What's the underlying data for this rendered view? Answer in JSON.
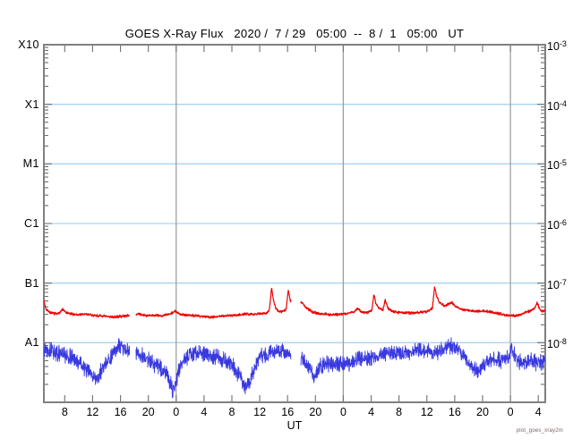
{
  "watermark": "plot_goes_xray2m",
  "colors": {
    "background": "#ffffff",
    "axis_frame": "#808080",
    "tick": "#6e6e6e",
    "horizontal_gridline": "#a9d4f2",
    "vertical_gridline": "#9a9a9a",
    "long_wavelength_trace": "#f00000",
    "short_wavelength_trace": "#3939e0"
  },
  "chart_data": {
    "type": "line",
    "title": "GOES X-Ray Flux   2020 /  7 / 29   05:00  --  8 /  1   05:00   UT",
    "xlabel": "UT",
    "time_span": {
      "start": "2020/7/29 05:00 UT",
      "end": "2020/8/1 05:00 UT",
      "hours": 72
    },
    "sample_minutes": 2,
    "x_axis": {
      "range_hours": [
        0,
        72
      ],
      "ticks": [
        {
          "hour": 3,
          "label": "8"
        },
        {
          "hour": 7,
          "label": "12"
        },
        {
          "hour": 11,
          "label": "16"
        },
        {
          "hour": 15,
          "label": "20"
        },
        {
          "hour": 19,
          "label": "0"
        },
        {
          "hour": 23,
          "label": "4"
        },
        {
          "hour": 27,
          "label": "8"
        },
        {
          "hour": 31,
          "label": "12"
        },
        {
          "hour": 35,
          "label": "16"
        },
        {
          "hour": 39,
          "label": "20"
        },
        {
          "hour": 43,
          "label": "0"
        },
        {
          "hour": 47,
          "label": "4"
        },
        {
          "hour": 51,
          "label": "8"
        },
        {
          "hour": 55,
          "label": "12"
        },
        {
          "hour": 59,
          "label": "16"
        },
        {
          "hour": 63,
          "label": "20"
        },
        {
          "hour": 67,
          "label": "0"
        },
        {
          "hour": 71,
          "label": "4"
        }
      ],
      "day_boundary_hours": [
        19,
        43,
        67
      ]
    },
    "y_axis": {
      "scale": "log10",
      "units": "W/m^2",
      "ylim": [
        1e-09,
        0.001
      ],
      "log10_range": [
        -9,
        -3
      ],
      "left_labels": [
        {
          "label": "X10",
          "log10": -3
        },
        {
          "label": "X1",
          "log10": -4
        },
        {
          "label": "M1",
          "log10": -5
        },
        {
          "label": "C1",
          "log10": -6
        },
        {
          "label": "B1",
          "log10": -7
        },
        {
          "label": "A1",
          "log10": -8
        }
      ],
      "right_exponents": [
        "-3",
        "-4",
        "-5",
        "-6",
        "-7",
        "-8"
      ],
      "gridline_log10": [
        -4,
        -5,
        -6,
        -7,
        -8
      ]
    },
    "gaps_hours": [
      [
        12.3,
        13.2
      ],
      [
        35.5,
        36.9
      ]
    ],
    "series": [
      {
        "name": "xray-long-1-8A",
        "color": "#f00000",
        "stroke_width": 1.2,
        "noise_log10": 0.025,
        "seed": 7,
        "points": [
          [
            0,
            -7.3
          ],
          [
            0.3,
            -7.44
          ],
          [
            1,
            -7.5
          ],
          [
            2,
            -7.52
          ],
          [
            2.7,
            -7.44
          ],
          [
            3.2,
            -7.5
          ],
          [
            4,
            -7.52
          ],
          [
            5,
            -7.53
          ],
          [
            6,
            -7.52
          ],
          [
            7,
            -7.54
          ],
          [
            8,
            -7.55
          ],
          [
            9,
            -7.56
          ],
          [
            10,
            -7.57
          ],
          [
            11,
            -7.56
          ],
          [
            12.2,
            -7.54
          ],
          [
            13.3,
            -7.52
          ],
          [
            14,
            -7.53
          ],
          [
            15,
            -7.55
          ],
          [
            16,
            -7.54
          ],
          [
            17,
            -7.55
          ],
          [
            18,
            -7.52
          ],
          [
            18.9,
            -7.47
          ],
          [
            19.3,
            -7.51
          ],
          [
            20,
            -7.53
          ],
          [
            21,
            -7.54
          ],
          [
            22,
            -7.55
          ],
          [
            23,
            -7.56
          ],
          [
            24,
            -7.57
          ],
          [
            25,
            -7.56
          ],
          [
            26,
            -7.55
          ],
          [
            27,
            -7.54
          ],
          [
            28,
            -7.53
          ],
          [
            29,
            -7.52
          ],
          [
            30,
            -7.52
          ],
          [
            31,
            -7.51
          ],
          [
            32,
            -7.5
          ],
          [
            32.4,
            -7.44
          ],
          [
            32.7,
            -7.08
          ],
          [
            33.0,
            -7.3
          ],
          [
            33.3,
            -7.42
          ],
          [
            33.6,
            -7.47
          ],
          [
            34.3,
            -7.48
          ],
          [
            34.8,
            -7.44
          ],
          [
            35.1,
            -7.11
          ],
          [
            35.4,
            -7.3
          ],
          [
            37,
            -7.32
          ],
          [
            37.7,
            -7.42
          ],
          [
            38.5,
            -7.48
          ],
          [
            39.5,
            -7.51
          ],
          [
            40.5,
            -7.52
          ],
          [
            41.5,
            -7.53
          ],
          [
            42.5,
            -7.52
          ],
          [
            43.5,
            -7.51
          ],
          [
            44.5,
            -7.48
          ],
          [
            45.1,
            -7.43
          ],
          [
            45.6,
            -7.48
          ],
          [
            46.3,
            -7.5
          ],
          [
            47.1,
            -7.46
          ],
          [
            47.4,
            -7.19
          ],
          [
            47.7,
            -7.35
          ],
          [
            48.2,
            -7.43
          ],
          [
            48.7,
            -7.45
          ],
          [
            49.0,
            -7.28
          ],
          [
            49.4,
            -7.42
          ],
          [
            50,
            -7.47
          ],
          [
            51,
            -7.49
          ],
          [
            52,
            -7.5
          ],
          [
            53,
            -7.5
          ],
          [
            54,
            -7.49
          ],
          [
            55,
            -7.48
          ],
          [
            55.8,
            -7.42
          ],
          [
            56.1,
            -7.06
          ],
          [
            56.4,
            -7.22
          ],
          [
            56.8,
            -7.32
          ],
          [
            57.5,
            -7.38
          ],
          [
            58.0,
            -7.36
          ],
          [
            58.6,
            -7.33
          ],
          [
            59.2,
            -7.4
          ],
          [
            60,
            -7.44
          ],
          [
            61,
            -7.46
          ],
          [
            62,
            -7.47
          ],
          [
            63,
            -7.47
          ],
          [
            64,
            -7.48
          ],
          [
            65,
            -7.5
          ],
          [
            66,
            -7.53
          ],
          [
            67,
            -7.55
          ],
          [
            68,
            -7.54
          ],
          [
            69,
            -7.5
          ],
          [
            70,
            -7.46
          ],
          [
            70.5,
            -7.42
          ],
          [
            70.8,
            -7.32
          ],
          [
            71.2,
            -7.44
          ],
          [
            71.6,
            -7.47
          ],
          [
            72,
            -7.46
          ]
        ]
      },
      {
        "name": "xray-short-0.5-4A",
        "color": "#3939e0",
        "stroke_width": 0.9,
        "noise_log10": 0.16,
        "seed": 13,
        "points": [
          [
            0,
            -8.07
          ],
          [
            1,
            -8.13
          ],
          [
            2,
            -8.18
          ],
          [
            3,
            -8.21
          ],
          [
            4,
            -8.25
          ],
          [
            5,
            -8.33
          ],
          [
            6,
            -8.43
          ],
          [
            7,
            -8.55
          ],
          [
            7.5,
            -8.63
          ],
          [
            8,
            -8.52
          ],
          [
            9,
            -8.33
          ],
          [
            10,
            -8.18
          ],
          [
            10.8,
            -8.07
          ],
          [
            11.5,
            -8.1
          ],
          [
            12.2,
            -8.13
          ],
          [
            13.3,
            -8.18
          ],
          [
            14,
            -8.22
          ],
          [
            15,
            -8.28
          ],
          [
            16,
            -8.37
          ],
          [
            17,
            -8.43
          ],
          [
            17.8,
            -8.55
          ],
          [
            18.3,
            -8.73
          ],
          [
            18.6,
            -8.85
          ],
          [
            18.8,
            -8.73
          ],
          [
            19.2,
            -8.55
          ],
          [
            19.6,
            -8.4
          ],
          [
            20,
            -8.28
          ],
          [
            21,
            -8.19
          ],
          [
            22,
            -8.16
          ],
          [
            23,
            -8.19
          ],
          [
            24,
            -8.22
          ],
          [
            25,
            -8.25
          ],
          [
            26,
            -8.28
          ],
          [
            27,
            -8.37
          ],
          [
            28,
            -8.52
          ],
          [
            28.5,
            -8.67
          ],
          [
            29,
            -8.75
          ],
          [
            29.5,
            -8.67
          ],
          [
            30,
            -8.52
          ],
          [
            30.5,
            -8.37
          ],
          [
            31,
            -8.25
          ],
          [
            32,
            -8.19
          ],
          [
            33,
            -8.16
          ],
          [
            34,
            -8.16
          ],
          [
            35.4,
            -8.19
          ],
          [
            37,
            -8.25
          ],
          [
            37.5,
            -8.33
          ],
          [
            38.3,
            -8.48
          ],
          [
            38.8,
            -8.55
          ],
          [
            39.5,
            -8.43
          ],
          [
            40.5,
            -8.33
          ],
          [
            41.5,
            -8.37
          ],
          [
            42.5,
            -8.33
          ],
          [
            43.5,
            -8.37
          ],
          [
            44.5,
            -8.31
          ],
          [
            45.5,
            -8.25
          ],
          [
            46.5,
            -8.28
          ],
          [
            47.5,
            -8.22
          ],
          [
            48.5,
            -8.19
          ],
          [
            50,
            -8.16
          ],
          [
            51.5,
            -8.19
          ],
          [
            53,
            -8.15
          ],
          [
            54,
            -8.12
          ],
          [
            55,
            -8.15
          ],
          [
            56,
            -8.19
          ],
          [
            57,
            -8.13
          ],
          [
            57.8,
            -8.06
          ],
          [
            58.3,
            -8.04
          ],
          [
            59,
            -8.1
          ],
          [
            60,
            -8.19
          ],
          [
            61,
            -8.31
          ],
          [
            61.8,
            -8.43
          ],
          [
            62.3,
            -8.49
          ],
          [
            63,
            -8.4
          ],
          [
            64,
            -8.28
          ],
          [
            65,
            -8.3
          ],
          [
            66,
            -8.28
          ],
          [
            66.8,
            -8.25
          ],
          [
            67.2,
            -8.1
          ],
          [
            67.6,
            -8.22
          ],
          [
            68,
            -8.3
          ],
          [
            69,
            -8.33
          ],
          [
            70,
            -8.3
          ],
          [
            71,
            -8.33
          ],
          [
            72,
            -8.3
          ]
        ]
      }
    ]
  }
}
